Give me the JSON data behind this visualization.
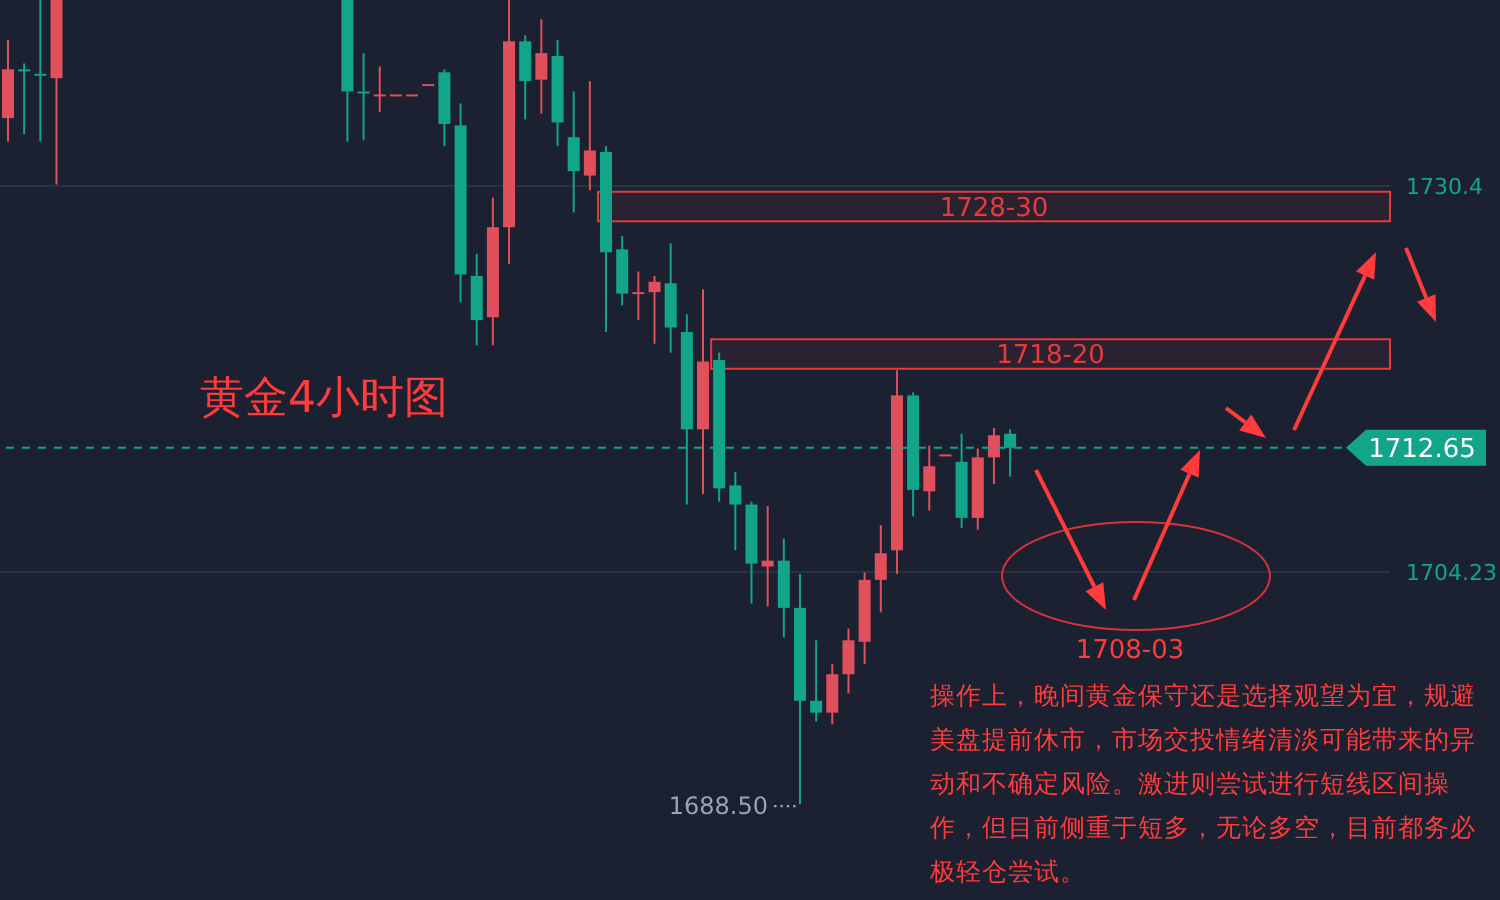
{
  "chart_data": {
    "type": "candlestick",
    "title": "黄金4小时图",
    "categories": [
      null,
      null,
      null,
      null,
      null,
      null,
      null,
      null,
      null,
      null,
      null,
      null,
      null,
      null,
      null,
      null,
      null,
      null,
      null,
      null,
      null,
      null,
      null,
      null,
      null,
      null,
      null,
      null,
      null,
      null,
      null,
      null,
      null,
      null,
      null,
      null,
      null,
      null,
      null,
      null,
      null,
      null,
      null,
      null,
      null,
      null,
      null,
      null,
      null,
      null,
      null,
      null,
      null,
      null,
      null,
      null,
      null,
      null,
      null,
      null,
      null,
      null,
      null,
      null,
      null,
      null,
      null,
      null,
      null,
      null,
      null,
      null,
      null,
      null,
      null,
      null,
      null,
      null,
      null,
      null,
      null,
      null,
      null,
      null,
      null,
      null
    ],
    "ohlc": [
      [
        1735.0,
        1740.3,
        1733.4,
        1738.3
      ],
      [
        1738.3,
        1738.7,
        1733.9,
        1738.2
      ],
      [
        1738.0,
        1743.1,
        1733.4,
        1737.9
      ],
      [
        1737.7,
        1743.1,
        1730.5,
        1743.1
      ],
      null,
      null,
      null,
      null,
      null,
      null,
      null,
      null,
      null,
      null,
      null,
      null,
      null,
      null,
      null,
      null,
      null,
      [
        1743.1,
        1743.1,
        1733.4,
        1736.8
      ],
      [
        1736.8,
        1739.4,
        1733.5,
        1736.7
      ],
      [
        1736.6,
        1738.5,
        1735.4,
        1736.6
      ],
      [
        1736.6,
        1736.6,
        1736.6,
        1736.6
      ],
      [
        1736.6,
        1736.6,
        1736.6,
        1736.6
      ],
      [
        1737.3,
        1737.3,
        1737.3,
        1737.3
      ],
      [
        1738.1,
        1738.3,
        1733.1,
        1734.6
      ],
      [
        1734.5,
        1736.0,
        1722.5,
        1724.4
      ],
      [
        1724.3,
        1725.8,
        1719.6,
        1721.3
      ],
      [
        1721.5,
        1729.6,
        1719.6,
        1727.6
      ],
      [
        1727.6,
        1743.1,
        1725.1,
        1740.2
      ],
      [
        1740.2,
        1740.6,
        1734.9,
        1737.5
      ],
      [
        1737.6,
        1741.7,
        1735.3,
        1739.4
      ],
      [
        1739.2,
        1740.3,
        1733.1,
        1734.7
      ],
      [
        1733.7,
        1736.8,
        1728.6,
        1731.4
      ],
      [
        1731.1,
        1737.5,
        1730.1,
        1732.8
      ],
      [
        1732.7,
        1733.1,
        1720.5,
        1725.9
      ],
      [
        1726.1,
        1727.0,
        1722.3,
        1723.1
      ],
      [
        1723.2,
        1724.6,
        1721.3,
        1723.2
      ],
      [
        1723.2,
        1724.3,
        1719.7,
        1723.9
      ],
      [
        1723.8,
        1726.5,
        1719.1,
        1720.8
      ],
      [
        1720.5,
        1721.7,
        1708.8,
        1713.9
      ],
      [
        1713.9,
        1723.4,
        1709.5,
        1718.5
      ],
      [
        1718.6,
        1719.1,
        1709.0,
        1709.9
      ],
      [
        1710.1,
        1711.0,
        1705.7,
        1708.8
      ],
      [
        1708.8,
        1709.0,
        1702.1,
        1704.8
      ],
      [
        1704.6,
        1708.7,
        1701.9,
        1705.0
      ],
      [
        1705.0,
        1706.5,
        1699.8,
        1701.8
      ],
      [
        1701.8,
        1704.1,
        1688.5,
        1695.5
      ],
      [
        1695.5,
        1699.6,
        1694.1,
        1694.7
      ],
      [
        1694.7,
        1698.0,
        1693.9,
        1697.3
      ],
      [
        1697.3,
        1700.4,
        1696.0,
        1699.6
      ],
      [
        1699.5,
        1704.2,
        1698.0,
        1703.7
      ],
      [
        1703.7,
        1707.4,
        1701.5,
        1705.5
      ],
      [
        1705.7,
        1717.9,
        1704.1,
        1716.2
      ],
      [
        1716.2,
        1716.4,
        1708.0,
        1709.8
      ],
      [
        1709.7,
        1712.8,
        1708.4,
        1711.4
      ],
      [
        1712.2,
        1712.2,
        1712.2,
        1712.2
      ],
      [
        1711.7,
        1713.6,
        1707.2,
        1707.9
      ],
      [
        1707.9,
        1712.6,
        1707.1,
        1712.0
      ],
      [
        1712.0,
        1714.0,
        1710.2,
        1713.5
      ],
      [
        1713.6,
        1713.9,
        1710.7,
        1712.65
      ],
      null,
      null,
      null,
      null,
      null,
      null,
      null,
      null,
      null,
      null,
      null,
      null,
      null,
      null,
      null,
      null,
      null,
      null,
      null,
      null,
      null,
      null,
      null
    ],
    "ylim": [
      1682,
      1743
    ],
    "yticks": [
      1704.23,
      1730.4
    ],
    "grid": "y",
    "tick_labels": "y",
    "ref_lines": [
      {
        "axis": "y",
        "value": 1712.65,
        "label": "1712.65",
        "color": "#12a58a",
        "line_style": "dashed"
      }
    ],
    "bands": [
      {
        "axis": "y",
        "from": 1728,
        "to": 1730,
        "label": "1728-30",
        "color": "#e8393b"
      },
      {
        "axis": "y",
        "from": 1718,
        "to": 1720,
        "label": "1718-20",
        "color": "#e8393b"
      }
    ],
    "annotations": [
      "1688.50",
      "1708-03",
      "操作上，晚间黄金保守还是选择观望为宜，规避美盘提前休市，市场交投情绪清淡可能带来的异动和不确定风险。激进则尝试进行短线区间操作，但目前侧重于短多，无论多空，目前都务必极轻仓尝试。"
    ]
  }
}
